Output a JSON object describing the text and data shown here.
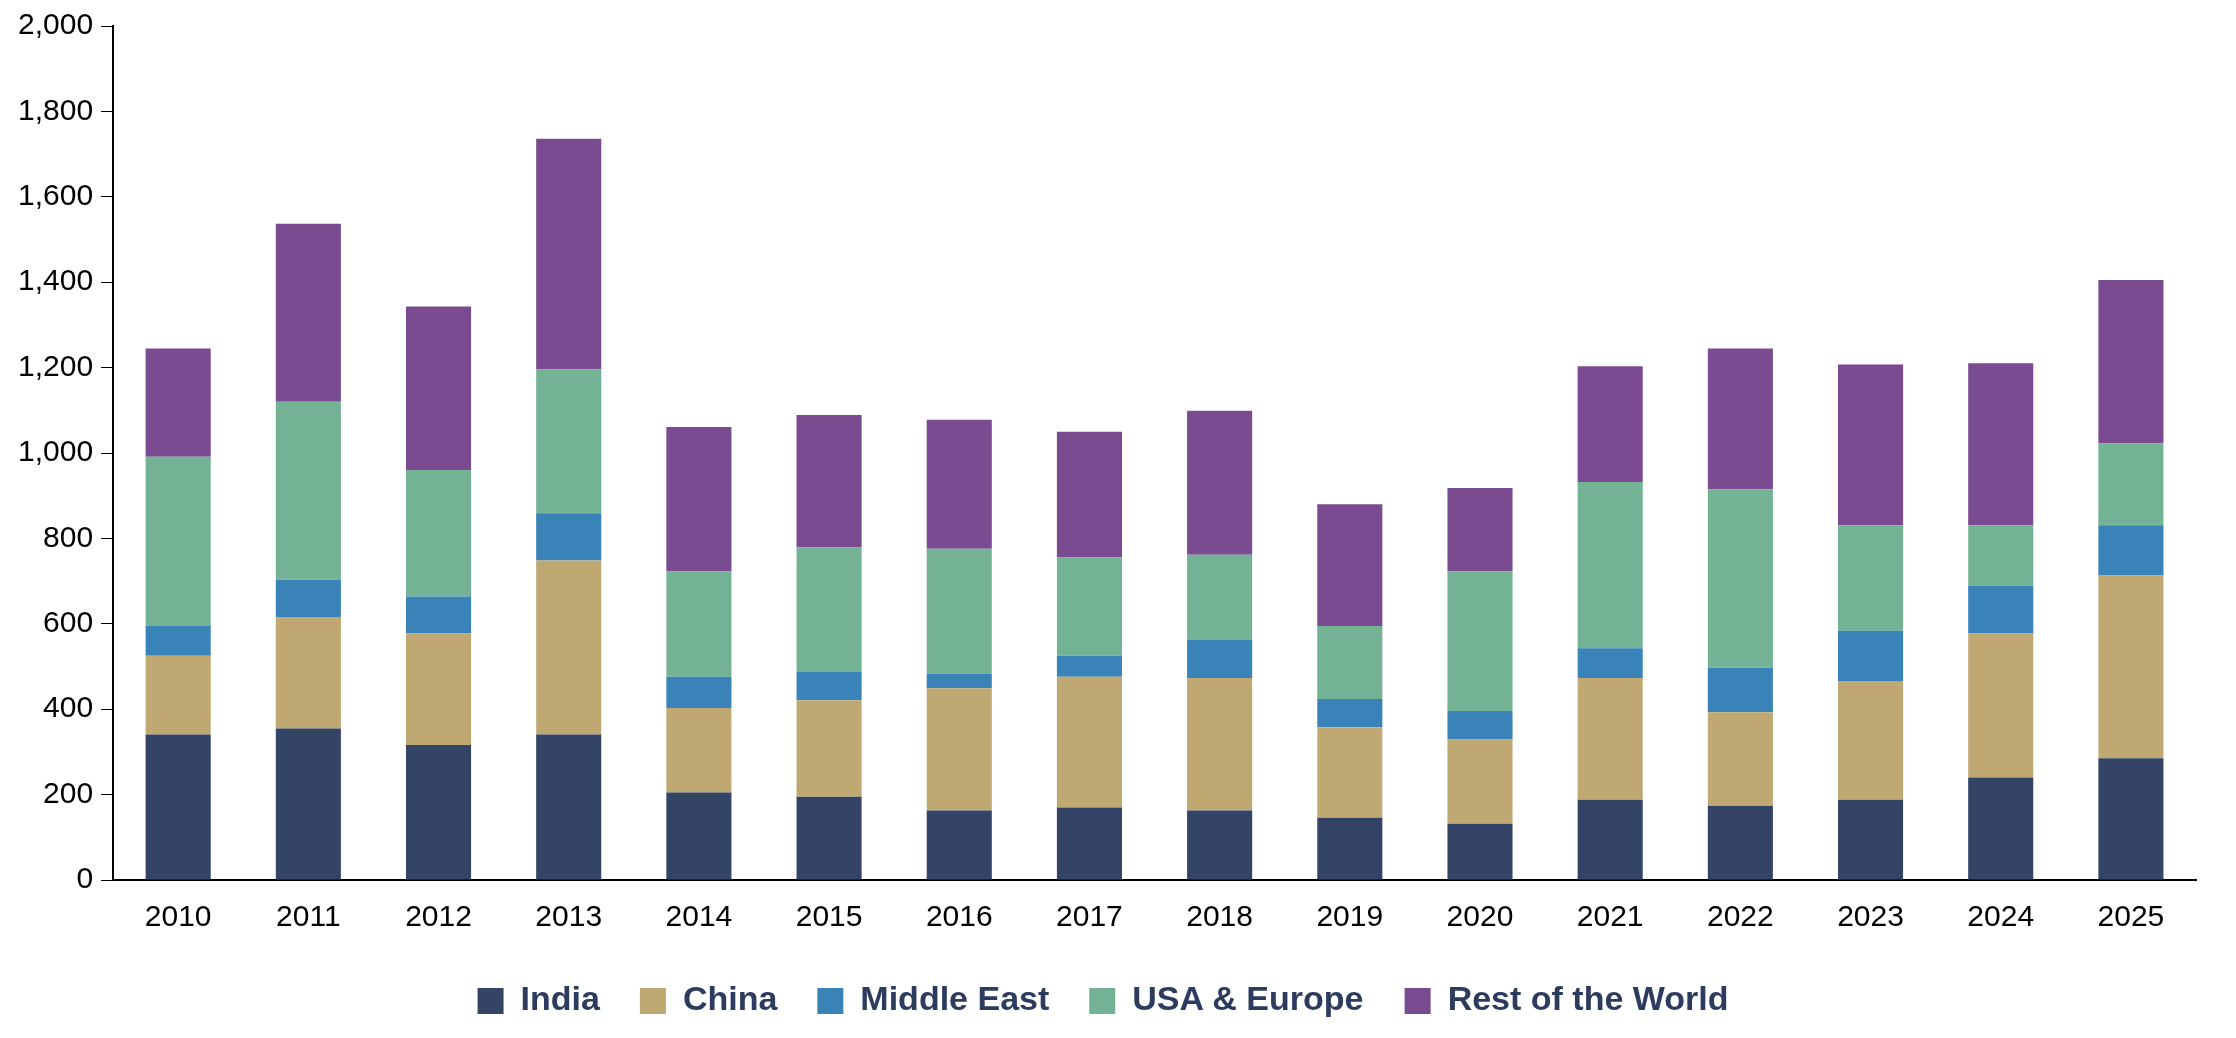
{
  "chart_data": {
    "type": "bar",
    "stacked": true,
    "categories": [
      "2010",
      "2011",
      "2012",
      "2013",
      "2014",
      "2015",
      "2016",
      "2017",
      "2018",
      "2019",
      "2020",
      "2021",
      "2022",
      "2023",
      "2024",
      "2025"
    ],
    "series": [
      {
        "name": "India",
        "color": "#344467",
        "values": [
          341,
          355,
          316,
          341,
          205,
          195,
          163,
          170,
          163,
          146,
          132,
          188,
          174,
          188,
          240,
          285
        ]
      },
      {
        "name": "China",
        "color": "#bfa872",
        "values": [
          184,
          261,
          261,
          407,
          198,
          226,
          286,
          306,
          310,
          212,
          198,
          285,
          219,
          278,
          337,
          428
        ]
      },
      {
        "name": "Middle East",
        "color": "#3a83b9",
        "values": [
          70,
          87,
          87,
          111,
          73,
          66,
          34,
          49,
          90,
          66,
          66,
          70,
          104,
          118,
          112,
          118
        ]
      },
      {
        "name": "USA & Europe",
        "color": "#73b294",
        "values": [
          396,
          417,
          296,
          337,
          247,
          292,
          293,
          230,
          199,
          171,
          327,
          389,
          418,
          247,
          142,
          192
        ]
      },
      {
        "name": "Rest of the World",
        "color": "#7a4b90",
        "values": [
          254,
          417,
          383,
          540,
          338,
          310,
          302,
          295,
          337,
          285,
          195,
          271,
          330,
          376,
          379,
          382
        ]
      }
    ],
    "ylim": [
      0,
      2000
    ],
    "yticks": [
      {
        "value": 0,
        "label": "0"
      },
      {
        "value": 200,
        "label": "200"
      },
      {
        "value": 400,
        "label": "400"
      },
      {
        "value": 600,
        "label": "600"
      },
      {
        "value": 800,
        "label": "800"
      },
      {
        "value": 1000,
        "label": "1,000"
      },
      {
        "value": 1200,
        "label": "1,200"
      },
      {
        "value": 1400,
        "label": "1,400"
      },
      {
        "value": 1600,
        "label": "1,600"
      },
      {
        "value": 1800,
        "label": "1,800"
      },
      {
        "value": 2000,
        "label": "2,000"
      }
    ],
    "grid": false,
    "legend": "bottom"
  }
}
